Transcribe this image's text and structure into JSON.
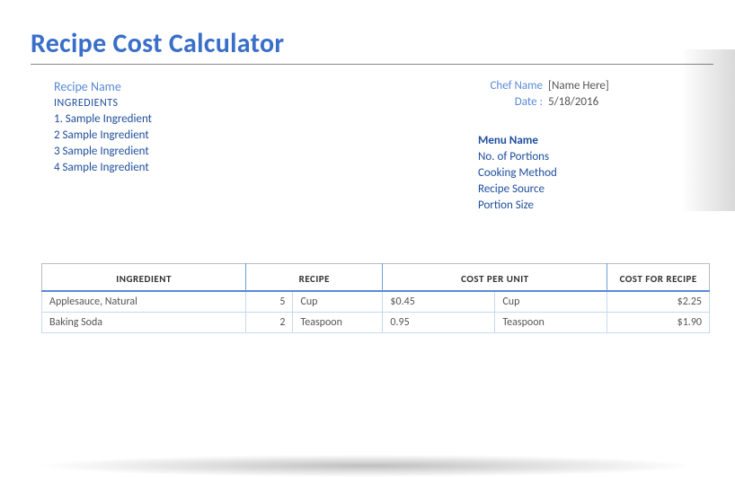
{
  "title": "Recipe Cost Calculator",
  "labels": {
    "recipe_name": "Recipe Name",
    "ingredients_head": "INGREDIENTS",
    "chef_name": "Chef Name",
    "date": "Date :",
    "menu_name": "Menu Name",
    "no_portions": "No. of Portions",
    "cooking_method": "Cooking Method",
    "recipe_source": "Recipe Source",
    "portion_size": "Portion Size"
  },
  "meta": {
    "chef_name_value": "[Name Here]",
    "date_value": "5/18/2016"
  },
  "ingredient_lines": [
    "1. Sample Ingredient",
    "2 Sample Ingredient",
    "3 Sample Ingredient",
    "4 Sample Ingredient"
  ],
  "table": {
    "headers": {
      "ingredient": "INGREDIENT",
      "recipe": "RECIPE",
      "cost_per_unit": "COST PER UNIT",
      "cost_for_recipe": "COST FOR RECIPE"
    },
    "rows": [
      {
        "name": "Applesauce, Natural",
        "qty": "5",
        "unit": "Cup",
        "cpu_val": "$0.45",
        "cpu_unit": "Cup",
        "cost": "$2.25"
      },
      {
        "name": "Baking Soda",
        "qty": "2",
        "unit": "Teaspoon",
        "cpu_val": "0.95",
        "cpu_unit": "Teaspoon",
        "cost": "$1.90"
      }
    ]
  },
  "style": {
    "accent_color": "#3a6fc9",
    "label_color": "#5a8ad6",
    "text_color": "#1f4e9c",
    "header_underline": "#5a8ad6",
    "cell_border": "#c7d8f0"
  }
}
